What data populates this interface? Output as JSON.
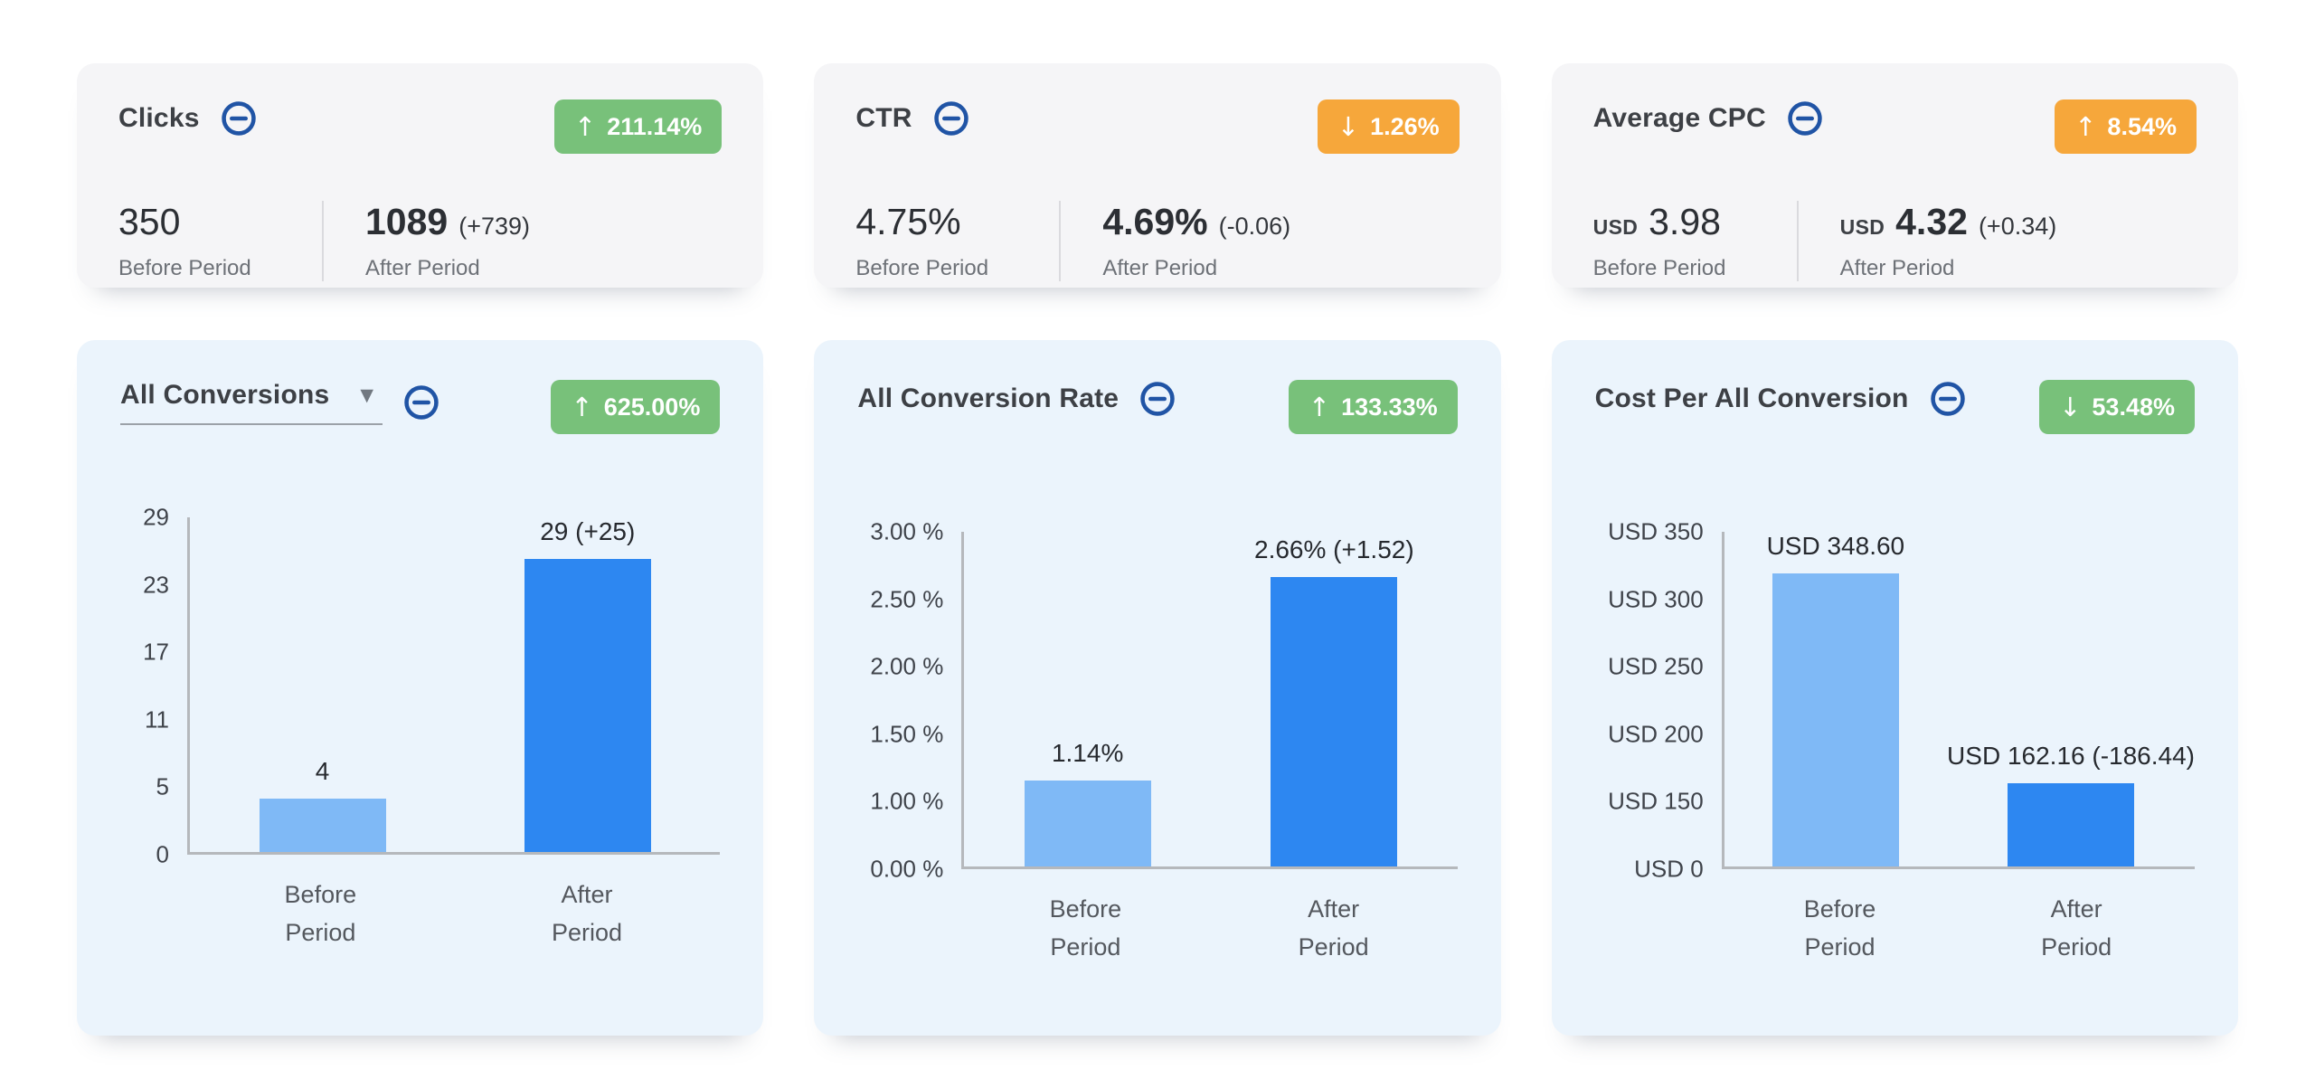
{
  "colors": {
    "badge_green": "#78c17a",
    "badge_orange": "#f6a73b",
    "icon_blue": "#2054a5",
    "bar_before": "#7fb9f6",
    "bar_after": "#2d87f1",
    "stat_card_bg": "#f5f5f7",
    "chart_card_bg": "#ebf4fc"
  },
  "stat_cards": [
    {
      "title": "Clicks",
      "badge": {
        "arrow": "↑",
        "value": "211.14%",
        "color": "#78c17a"
      },
      "before": {
        "currency": "",
        "value": "350",
        "label": "Before Period"
      },
      "after": {
        "currency": "",
        "value": "1089",
        "delta": "(+739)",
        "label": "After Period"
      }
    },
    {
      "title": "CTR",
      "badge": {
        "arrow": "↓",
        "value": "1.26%",
        "color": "#f6a73b"
      },
      "before": {
        "currency": "",
        "value": "4.75%",
        "label": "Before Period"
      },
      "after": {
        "currency": "",
        "value": "4.69%",
        "delta": "(-0.06)",
        "label": "After Period"
      }
    },
    {
      "title": "Average CPC",
      "badge": {
        "arrow": "↑",
        "value": "8.54%",
        "color": "#f6a73b"
      },
      "before": {
        "currency": "USD",
        "value": "3.98",
        "label": "Before Period"
      },
      "after": {
        "currency": "USD",
        "value": "4.32",
        "delta": "(+0.34)",
        "label": "After Period"
      }
    }
  ],
  "chart_data": [
    {
      "type": "bar",
      "title": "All Conversions",
      "title_is_dropdown": true,
      "dropdown_caret": "▼",
      "change_badge": {
        "arrow": "↑",
        "value": "625.00%",
        "color": "#78c17a"
      },
      "categories": [
        "Before\nPeriod",
        "After\nPeriod"
      ],
      "values": [
        4,
        29
      ],
      "value_labels": [
        "4",
        "29 (+25)"
      ],
      "ytick_labels": [
        "29",
        "23",
        "17",
        "11",
        "5",
        "0"
      ],
      "ytick_values": [
        29,
        23,
        17,
        11,
        5,
        0
      ],
      "ylim": [
        0,
        29
      ],
      "bar_colors": [
        "#7fb9f6",
        "#2d87f1"
      ],
      "grid": false,
      "legend": "none"
    },
    {
      "type": "bar",
      "title": "All Conversion Rate",
      "title_is_dropdown": false,
      "change_badge": {
        "arrow": "↑",
        "value": "133.33%",
        "color": "#78c17a"
      },
      "categories": [
        "Before\nPeriod",
        "After\nPeriod"
      ],
      "values": [
        1.14,
        2.66
      ],
      "value_labels": [
        "1.14%",
        "2.66% (+1.52)"
      ],
      "ytick_labels": [
        "3.00 %",
        "2.50 %",
        "2.00 %",
        "1.50 %",
        "1.00 %",
        "0.00 %"
      ],
      "ytick_values": [
        3.0,
        2.5,
        2.0,
        1.5,
        1.0,
        0
      ],
      "ylim": [
        0,
        3.0
      ],
      "bar_colors": [
        "#7fb9f6",
        "#2d87f1"
      ],
      "grid": false,
      "legend": "none"
    },
    {
      "type": "bar",
      "title": "Cost Per All Conversion",
      "title_is_dropdown": false,
      "change_badge": {
        "arrow": "↓",
        "value": "53.48%",
        "color": "#78c17a"
      },
      "categories": [
        "Before\nPeriod",
        "After\nPeriod"
      ],
      "values": [
        348.6,
        162.16
      ],
      "value_labels": [
        "USD 348.60",
        "USD 162.16 (-186.44)"
      ],
      "ytick_labels": [
        "USD 350",
        "USD 300",
        "USD 250",
        "USD 200",
        "USD 150",
        "USD 0"
      ],
      "ytick_values": [
        350,
        300,
        250,
        200,
        150,
        0
      ],
      "ylim": [
        0,
        350
      ],
      "bar_colors": [
        "#7fb9f6",
        "#2d87f1"
      ],
      "grid": false,
      "legend": "none"
    }
  ]
}
